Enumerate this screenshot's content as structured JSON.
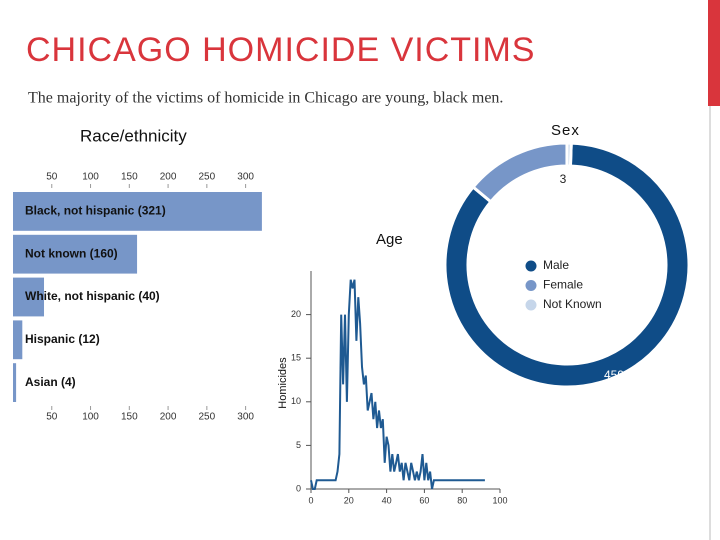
{
  "slide": {
    "title": "CHICAGO HOMICIDE VICTIMS",
    "subtitle": "The majority of the victims of homicide in Chicago are young, black men."
  },
  "chart_data": [
    {
      "type": "hbar",
      "title": "Race/ethnicity",
      "categories": [
        "Black, not hispanic (321)",
        "Not known (160)",
        "White, not hispanic (40)",
        "Hispanic (12)",
        "Asian (4)"
      ],
      "values": [
        321,
        160,
        40,
        12,
        4
      ],
      "color": "#7796c8",
      "xlim": [
        0,
        325
      ],
      "xticks": [
        50,
        100,
        150,
        200,
        250,
        300
      ]
    },
    {
      "type": "line",
      "title": "Age",
      "ylabel": "Homicides",
      "x": [
        0,
        1,
        2,
        3,
        4,
        5,
        6,
        7,
        8,
        9,
        10,
        11,
        12,
        13,
        14,
        15,
        16,
        17,
        18,
        19,
        20,
        21,
        22,
        23,
        24,
        25,
        26,
        27,
        28,
        29,
        30,
        31,
        32,
        33,
        34,
        35,
        36,
        37,
        38,
        39,
        40,
        41,
        42,
        43,
        44,
        45,
        46,
        47,
        48,
        49,
        50,
        51,
        52,
        53,
        54,
        55,
        56,
        57,
        58,
        59,
        60,
        61,
        62,
        63,
        64,
        65,
        66,
        67,
        68,
        69,
        70,
        71,
        72,
        73,
        74,
        75,
        76,
        77,
        78,
        79,
        80,
        81,
        82,
        83,
        84,
        85,
        86,
        87,
        88,
        89,
        90,
        91,
        92
      ],
      "values": [
        1,
        0,
        0,
        1,
        1,
        1,
        1,
        1,
        1,
        1,
        1,
        1,
        1,
        1,
        2,
        4,
        20,
        12,
        20,
        10,
        20,
        24,
        23,
        24,
        17,
        22,
        19,
        14,
        12,
        13,
        9,
        10,
        11,
        8,
        10,
        7,
        9,
        7,
        8,
        3,
        6,
        5,
        2,
        4,
        2,
        3,
        4,
        2,
        3,
        1,
        3,
        2,
        1,
        3,
        2,
        1,
        2,
        1,
        2,
        4,
        1,
        3,
        1,
        2,
        0,
        1,
        1,
        1,
        1,
        1,
        1,
        1,
        1,
        1,
        1,
        1,
        1,
        1,
        1,
        1,
        1,
        1,
        1,
        1,
        1,
        1,
        1,
        1,
        1,
        1,
        1,
        1,
        1
      ],
      "color": "#1f5a92",
      "xlim": [
        0,
        100
      ],
      "ylim": [
        0,
        25
      ],
      "xticks": [
        0,
        20,
        40,
        60,
        80,
        100
      ],
      "yticks": [
        0,
        5,
        10,
        15,
        20
      ]
    },
    {
      "type": "donut",
      "title": "Sex",
      "categories": [
        "Male",
        "Female",
        "Not Known"
      ],
      "values": [
        459,
        75,
        3
      ],
      "colors": [
        "#0f4c87",
        "#7796c8",
        "#c6d6ea"
      ]
    }
  ]
}
